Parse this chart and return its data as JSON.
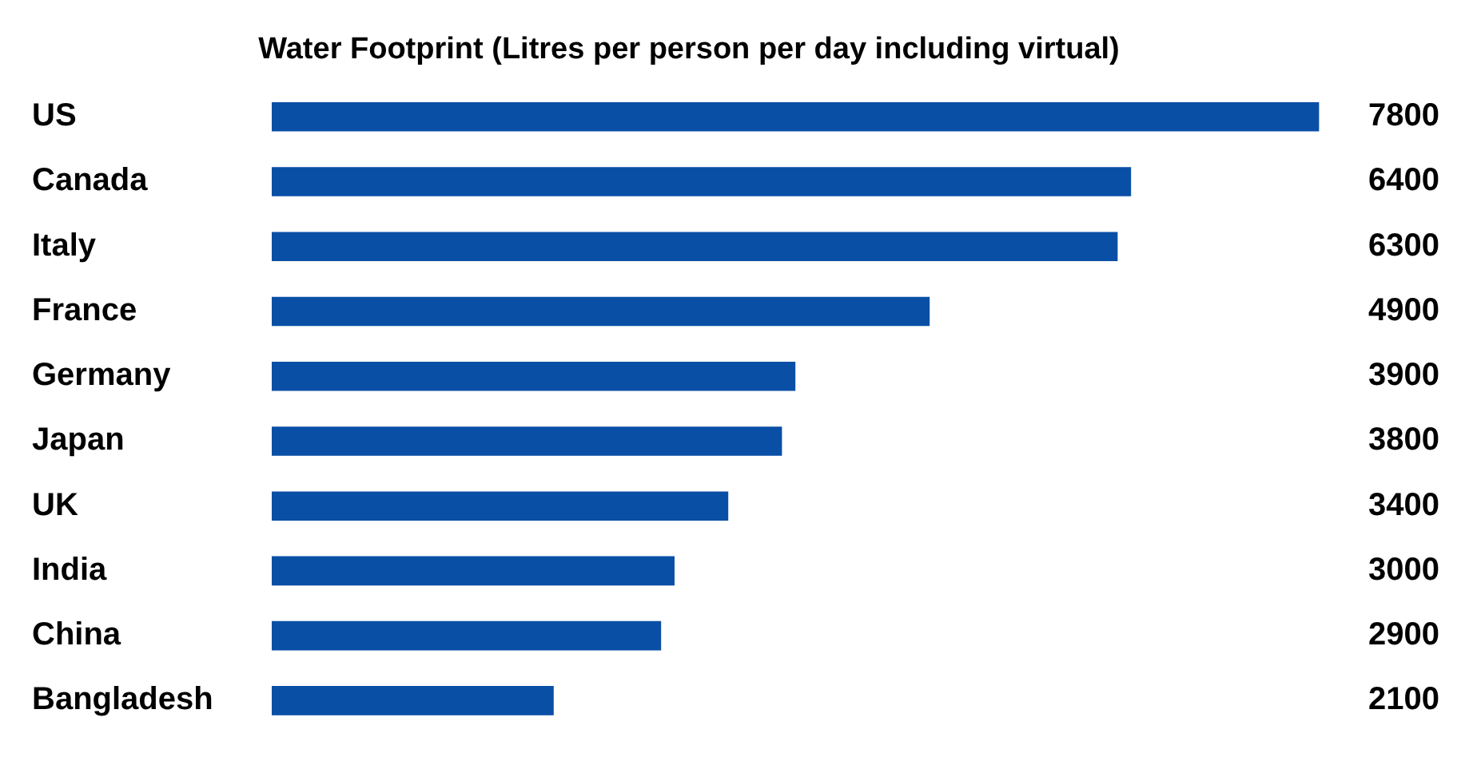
{
  "chart_data": {
    "type": "bar",
    "orientation": "horizontal",
    "title": "Water Footprint (Litres per person per day including virtual)",
    "categories": [
      "US",
      "Canada",
      "Italy",
      "France",
      "Germany",
      "Japan",
      "UK",
      "India",
      "China",
      "Bangladesh"
    ],
    "values": [
      7800,
      6400,
      6300,
      4900,
      3900,
      3800,
      3400,
      3000,
      2900,
      2100
    ],
    "color": "#0a4fa6",
    "data_labels": true
  }
}
